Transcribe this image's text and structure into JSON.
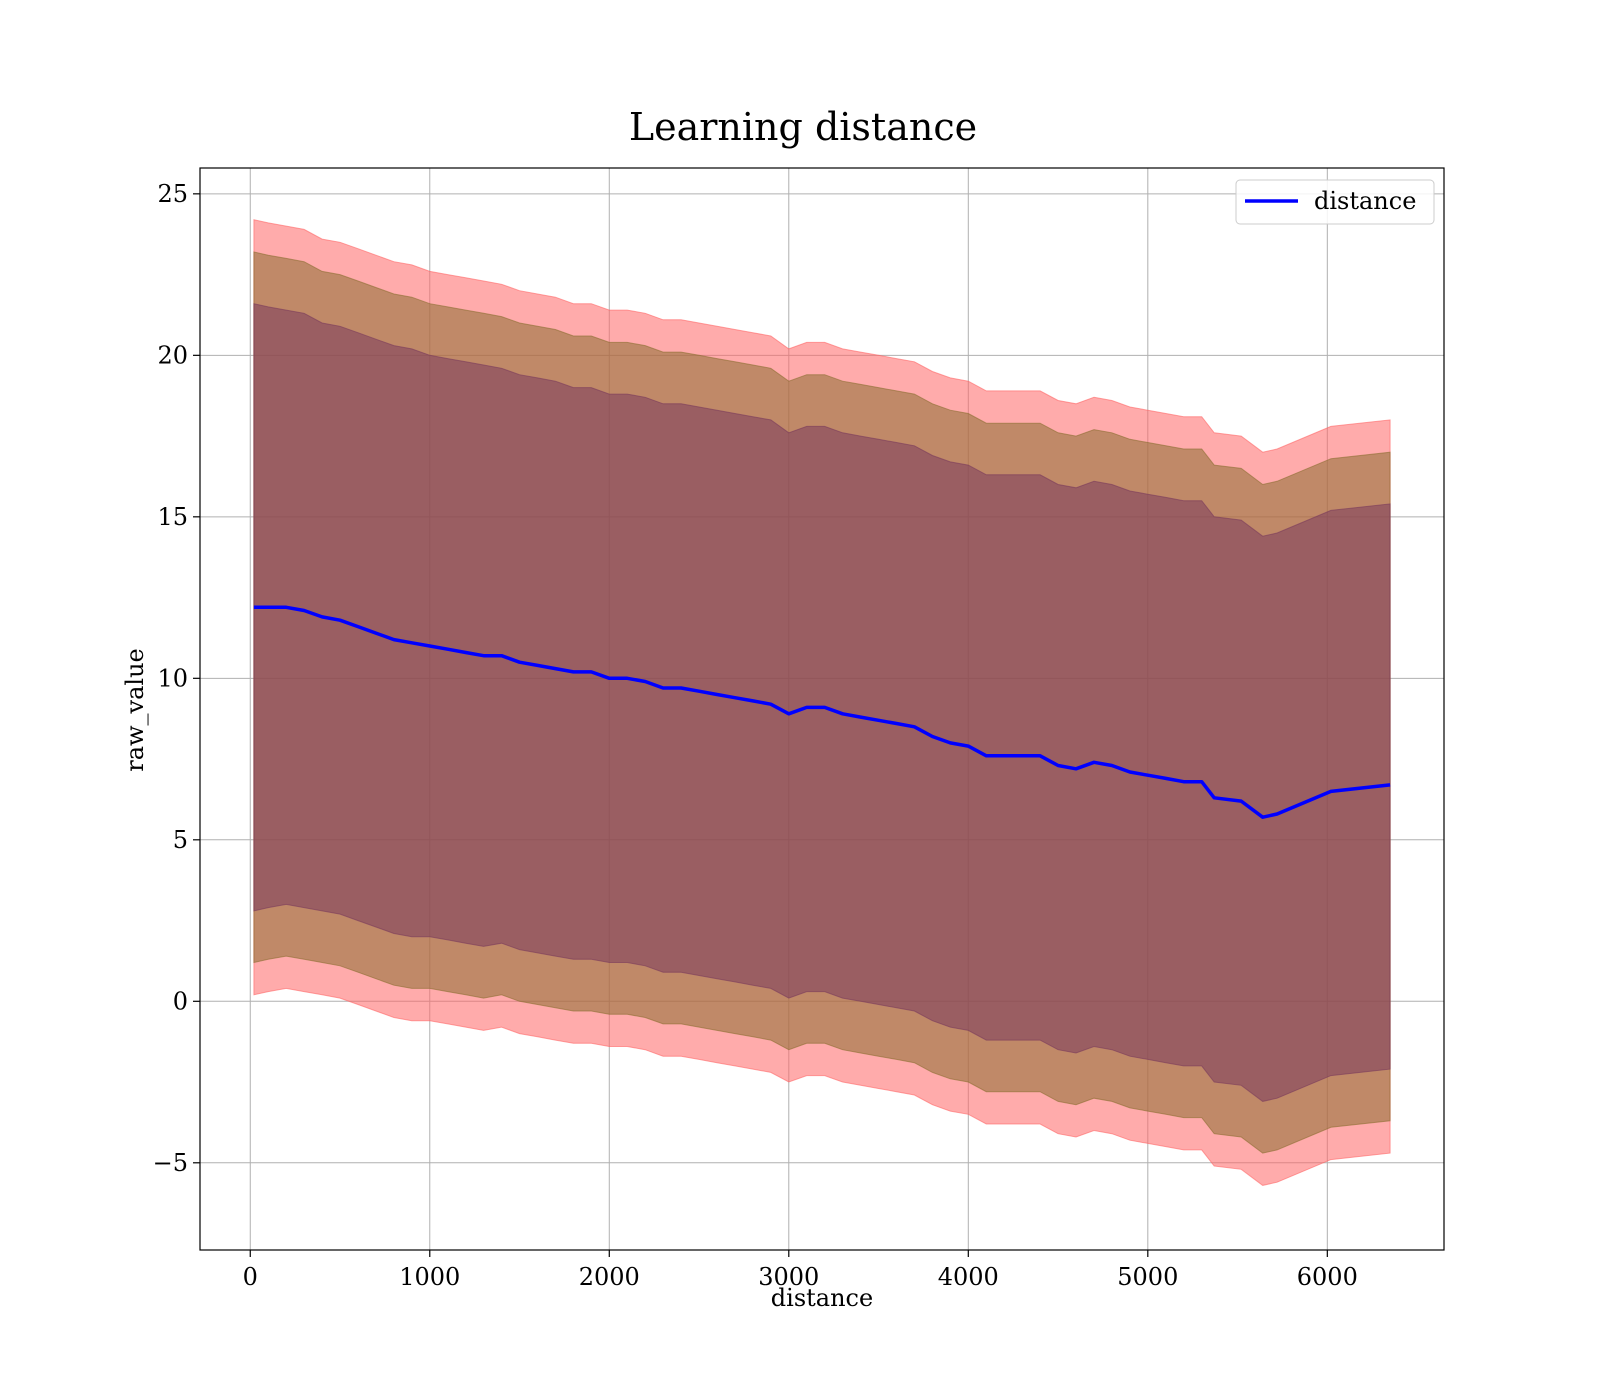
{
  "chart_data": {
    "type": "line",
    "title": "Learning distance",
    "xlabel": "distance",
    "ylabel": "raw_value",
    "xlim": [
      -280,
      6650
    ],
    "ylim": [
      -7.7,
      25.8
    ],
    "xticks": [
      0,
      1000,
      2000,
      3000,
      4000,
      5000,
      6000
    ],
    "yticks": [
      -5,
      0,
      5,
      10,
      15,
      20,
      25
    ],
    "xtick_labels": [
      "0",
      "1000",
      "2000",
      "3000",
      "4000",
      "5000",
      "6000"
    ],
    "ytick_labels": [
      "−5",
      "0",
      "5",
      "10",
      "15",
      "20",
      "25"
    ],
    "grid": true,
    "legend_position": "top-right",
    "legend": [
      "distance"
    ],
    "series": [
      {
        "name": "distance",
        "color": "#0000ff",
        "x": [
          20,
          100,
          200,
          300,
          400,
          500,
          600,
          700,
          800,
          900,
          1000,
          1100,
          1200,
          1300,
          1400,
          1500,
          1600,
          1700,
          1800,
          1900,
          2000,
          2100,
          2200,
          2300,
          2400,
          2500,
          2600,
          2700,
          2800,
          2900,
          3000,
          3100,
          3200,
          3300,
          3400,
          3500,
          3600,
          3700,
          3800,
          3900,
          4000,
          4100,
          4200,
          4300,
          4400,
          4500,
          4600,
          4700,
          4800,
          4900,
          5000,
          5100,
          5200,
          5300,
          5370,
          5520,
          5640,
          5720,
          6020,
          6350
        ],
        "y": [
          12.2,
          12.2,
          12.2,
          12.1,
          11.9,
          11.8,
          11.6,
          11.4,
          11.2,
          11.1,
          11.0,
          10.9,
          10.8,
          10.7,
          10.7,
          10.5,
          10.4,
          10.3,
          10.2,
          10.2,
          10.0,
          10.0,
          9.9,
          9.7,
          9.7,
          9.6,
          9.5,
          9.4,
          9.3,
          9.2,
          8.9,
          9.1,
          9.1,
          8.9,
          8.8,
          8.7,
          8.6,
          8.5,
          8.2,
          8.0,
          7.9,
          7.6,
          7.6,
          7.6,
          7.6,
          7.3,
          7.2,
          7.4,
          7.3,
          7.1,
          7.0,
          6.9,
          6.8,
          6.8,
          6.3,
          6.2,
          5.7,
          5.8,
          6.5,
          6.7
        ]
      }
    ],
    "bands": [
      {
        "color": "#ff6666",
        "upper": [
          24.2,
          24.1,
          24.0,
          23.9,
          23.6,
          23.5,
          23.3,
          23.1,
          22.9,
          22.8,
          22.6,
          22.5,
          22.4,
          22.3,
          22.2,
          22.0,
          21.9,
          21.8,
          21.6,
          21.6,
          21.4,
          21.4,
          21.3,
          21.1,
          21.1,
          21.0,
          20.9,
          20.8,
          20.7,
          20.6,
          20.2,
          20.4,
          20.4,
          20.2,
          20.1,
          20.0,
          19.9,
          19.8,
          19.5,
          19.3,
          19.2,
          18.9,
          18.9,
          18.9,
          18.9,
          18.6,
          18.5,
          18.7,
          18.6,
          18.4,
          18.3,
          18.2,
          18.1,
          18.1,
          17.6,
          17.5,
          17.0,
          17.1,
          17.8,
          18.0
        ],
        "lower": [
          0.2,
          0.3,
          0.4,
          0.3,
          0.2,
          0.1,
          -0.1,
          -0.3,
          -0.5,
          -0.6,
          -0.6,
          -0.7,
          -0.8,
          -0.9,
          -0.8,
          -1.0,
          -1.1,
          -1.2,
          -1.3,
          -1.3,
          -1.4,
          -1.4,
          -1.5,
          -1.7,
          -1.7,
          -1.8,
          -1.9,
          -2.0,
          -2.1,
          -2.2,
          -2.5,
          -2.3,
          -2.3,
          -2.5,
          -2.6,
          -2.7,
          -2.8,
          -2.9,
          -3.2,
          -3.4,
          -3.5,
          -3.8,
          -3.8,
          -3.8,
          -3.8,
          -4.1,
          -4.2,
          -4.0,
          -4.1,
          -4.3,
          -4.4,
          -4.5,
          -4.6,
          -4.6,
          -5.1,
          -5.2,
          -5.7,
          -5.6,
          -4.9,
          -4.7
        ]
      },
      {
        "color": "#8c6e32",
        "upper": [
          23.2,
          23.1,
          23.0,
          22.9,
          22.6,
          22.5,
          22.3,
          22.1,
          21.9,
          21.8,
          21.6,
          21.5,
          21.4,
          21.3,
          21.2,
          21.0,
          20.9,
          20.8,
          20.6,
          20.6,
          20.4,
          20.4,
          20.3,
          20.1,
          20.1,
          20.0,
          19.9,
          19.8,
          19.7,
          19.6,
          19.2,
          19.4,
          19.4,
          19.2,
          19.1,
          19.0,
          18.9,
          18.8,
          18.5,
          18.3,
          18.2,
          17.9,
          17.9,
          17.9,
          17.9,
          17.6,
          17.5,
          17.7,
          17.6,
          17.4,
          17.3,
          17.2,
          17.1,
          17.1,
          16.6,
          16.5,
          16.0,
          16.1,
          16.8,
          17.0
        ],
        "lower": [
          1.2,
          1.3,
          1.4,
          1.3,
          1.2,
          1.1,
          0.9,
          0.7,
          0.5,
          0.4,
          0.4,
          0.3,
          0.2,
          0.1,
          0.2,
          0.0,
          -0.1,
          -0.2,
          -0.3,
          -0.3,
          -0.4,
          -0.4,
          -0.5,
          -0.7,
          -0.7,
          -0.8,
          -0.9,
          -1.0,
          -1.1,
          -1.2,
          -1.5,
          -1.3,
          -1.3,
          -1.5,
          -1.6,
          -1.7,
          -1.8,
          -1.9,
          -2.2,
          -2.4,
          -2.5,
          -2.8,
          -2.8,
          -2.8,
          -2.8,
          -3.1,
          -3.2,
          -3.0,
          -3.1,
          -3.3,
          -3.4,
          -3.5,
          -3.6,
          -3.6,
          -4.1,
          -4.2,
          -4.7,
          -4.6,
          -3.9,
          -3.7
        ]
      },
      {
        "color": "#7a3a5c",
        "upper": [
          21.6,
          21.5,
          21.4,
          21.3,
          21.0,
          20.9,
          20.7,
          20.5,
          20.3,
          20.2,
          20.0,
          19.9,
          19.8,
          19.7,
          19.6,
          19.4,
          19.3,
          19.2,
          19.0,
          19.0,
          18.8,
          18.8,
          18.7,
          18.5,
          18.5,
          18.4,
          18.3,
          18.2,
          18.1,
          18.0,
          17.6,
          17.8,
          17.8,
          17.6,
          17.5,
          17.4,
          17.3,
          17.2,
          16.9,
          16.7,
          16.6,
          16.3,
          16.3,
          16.3,
          16.3,
          16.0,
          15.9,
          16.1,
          16.0,
          15.8,
          15.7,
          15.6,
          15.5,
          15.5,
          15.0,
          14.9,
          14.4,
          14.5,
          15.2,
          15.4
        ],
        "lower": [
          2.8,
          2.9,
          3.0,
          2.9,
          2.8,
          2.7,
          2.5,
          2.3,
          2.1,
          2.0,
          2.0,
          1.9,
          1.8,
          1.7,
          1.8,
          1.6,
          1.5,
          1.4,
          1.3,
          1.3,
          1.2,
          1.2,
          1.1,
          0.9,
          0.9,
          0.8,
          0.7,
          0.6,
          0.5,
          0.4,
          0.1,
          0.3,
          0.3,
          0.1,
          0.0,
          -0.1,
          -0.2,
          -0.3,
          -0.6,
          -0.8,
          -0.9,
          -1.2,
          -1.2,
          -1.2,
          -1.2,
          -1.5,
          -1.6,
          -1.4,
          -1.5,
          -1.7,
          -1.8,
          -1.9,
          -2.0,
          -2.0,
          -2.5,
          -2.6,
          -3.1,
          -3.0,
          -2.3,
          -2.1
        ]
      }
    ]
  }
}
